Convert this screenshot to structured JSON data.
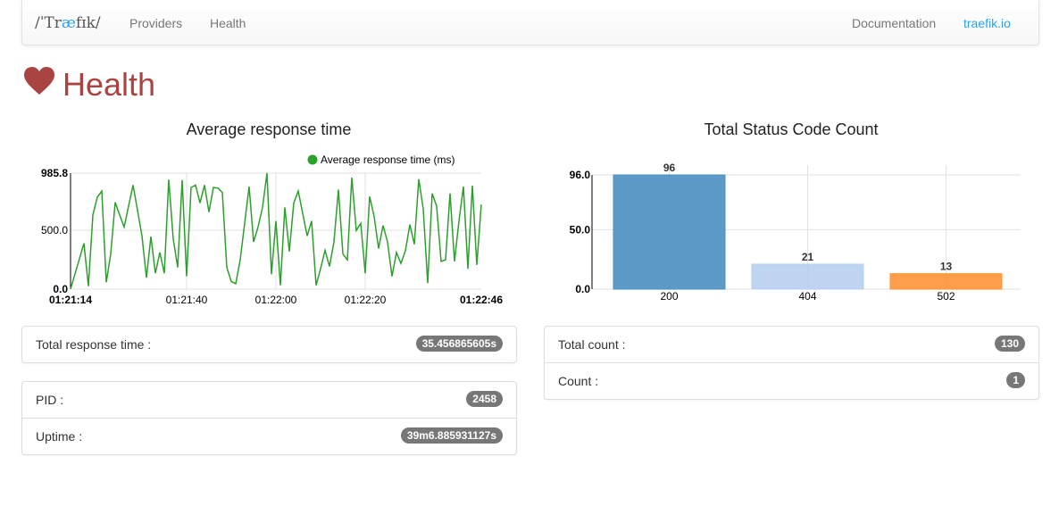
{
  "navbar": {
    "logo": "/ˈTræfɪk/",
    "links": [
      "Providers",
      "Health"
    ],
    "right_links": [
      "Documentation",
      "traefik.io"
    ]
  },
  "page": {
    "title": "Health",
    "icon": "heart-icon",
    "title_color": "#a94442"
  },
  "chart_data": [
    {
      "type": "line",
      "title": "Average response time",
      "series": [
        {
          "name": "Average response time (ms)",
          "color": "#2ca02c",
          "points": [
            [
              "01:21:14",
              0
            ],
            [
              "01:21:17",
              389
            ],
            [
              "01:21:18",
              25
            ],
            [
              "01:21:19",
              630
            ],
            [
              "01:21:20",
              782
            ],
            [
              "01:21:21",
              833
            ],
            [
              "01:21:22",
              58
            ],
            [
              "01:21:23",
              300
            ],
            [
              "01:21:24",
              737
            ],
            [
              "01:21:25",
              630
            ],
            [
              "01:21:26",
              528
            ],
            [
              "01:21:28",
              884
            ],
            [
              "01:21:29",
              670
            ],
            [
              "01:21:30",
              452
            ],
            [
              "01:21:31",
              97
            ],
            [
              "01:21:32",
              447
            ],
            [
              "01:21:33",
              135
            ],
            [
              "01:21:34",
              312
            ],
            [
              "01:21:35",
              135
            ],
            [
              "01:21:36",
              930
            ],
            [
              "01:21:37",
              427
            ],
            [
              "01:21:38",
              185
            ],
            [
              "01:21:39",
              927
            ],
            [
              "01:21:40",
              109
            ],
            [
              "01:21:41",
              864
            ],
            [
              "01:21:42",
              884
            ],
            [
              "01:21:43",
              732
            ],
            [
              "01:21:44",
              884
            ],
            [
              "01:21:45",
              655
            ],
            [
              "01:21:46",
              864
            ],
            [
              "01:21:47",
              859
            ],
            [
              "01:21:48",
              821
            ],
            [
              "01:21:49",
              185
            ],
            [
              "01:21:50",
              66
            ],
            [
              "01:21:51",
              46
            ],
            [
              "01:21:52",
              249
            ],
            [
              "01:21:54",
              871
            ],
            [
              "01:21:55",
              401
            ],
            [
              "01:21:56",
              528
            ],
            [
              "01:21:57",
              694
            ],
            [
              "01:21:58",
              986
            ],
            [
              "01:21:59",
              127
            ],
            [
              "01:22:00",
              579
            ],
            [
              "01:22:01",
              33
            ],
            [
              "01:22:02",
              694
            ],
            [
              "01:22:03",
              320
            ],
            [
              "01:22:04",
              732
            ],
            [
              "01:22:05",
              833
            ],
            [
              "01:22:06",
              643
            ],
            [
              "01:22:07",
              452
            ],
            [
              "01:22:08",
              579
            ],
            [
              "01:22:09",
              33
            ],
            [
              "01:22:10",
              173
            ],
            [
              "01:22:11",
              330
            ],
            [
              "01:22:12",
              193
            ],
            [
              "01:22:13",
              401
            ],
            [
              "01:22:14",
              846
            ],
            [
              "01:22:15",
              300
            ],
            [
              "01:22:16",
              249
            ],
            [
              "01:22:17",
              948
            ],
            [
              "01:22:18",
              498
            ],
            [
              "01:22:19",
              559
            ],
            [
              "01:22:20",
              135
            ],
            [
              "01:22:21",
              787
            ],
            [
              "01:22:22",
              617
            ],
            [
              "01:22:23",
              345
            ],
            [
              "01:22:24",
              541
            ],
            [
              "01:22:25",
              401
            ],
            [
              "01:22:26",
              109
            ],
            [
              "01:22:27",
              312
            ],
            [
              "01:22:28",
              219
            ],
            [
              "01:22:29",
              325
            ],
            [
              "01:22:30",
              549
            ],
            [
              "01:22:31",
              381
            ],
            [
              "01:22:32",
              935
            ],
            [
              "01:22:33",
              681
            ],
            [
              "01:22:34",
              51
            ],
            [
              "01:22:35",
              813
            ],
            [
              "01:22:36",
              706
            ],
            [
              "01:22:37",
              236
            ],
            [
              "01:22:38",
              249
            ],
            [
              "01:22:39",
              813
            ],
            [
              "01:22:40",
              236
            ],
            [
              "01:22:41",
              579
            ],
            [
              "01:22:42",
              871
            ],
            [
              "01:22:43",
              173
            ],
            [
              "01:22:44",
              879
            ],
            [
              "01:22:45",
              206
            ],
            [
              "01:22:46",
              719
            ]
          ]
        }
      ],
      "xlim": [
        "01:21:14",
        "01:22:46"
      ],
      "ylim": [
        0,
        985.8
      ],
      "yticks": [
        "0.0",
        "500.0",
        "985.8"
      ],
      "xticks": [
        "01:21:14",
        "01:21:40",
        "01:22:00",
        "01:22:20",
        "01:22:46"
      ],
      "legend": "top-right",
      "grid": true
    },
    {
      "type": "bar",
      "title": "Total Status Code Count",
      "categories": [
        "200",
        "404",
        "502"
      ],
      "values": [
        96,
        21,
        13
      ],
      "colors": [
        "#4a90c2",
        "#b7cfee",
        "#ff9436"
      ],
      "ylim": [
        0,
        96
      ],
      "yticks": [
        "0.0",
        "50.0",
        "96.0"
      ],
      "grid": true
    }
  ],
  "left_panels": {
    "total_response_time": {
      "label": "Total response time :",
      "value": "35.456865605s"
    },
    "pid": {
      "label": "PID :",
      "value": "2458"
    },
    "uptime": {
      "label": "Uptime :",
      "value": "39m6.885931127s"
    }
  },
  "right_panel": {
    "total_count": {
      "label": "Total count :",
      "value": "130"
    },
    "count": {
      "label": "Count :",
      "value": "1"
    }
  }
}
